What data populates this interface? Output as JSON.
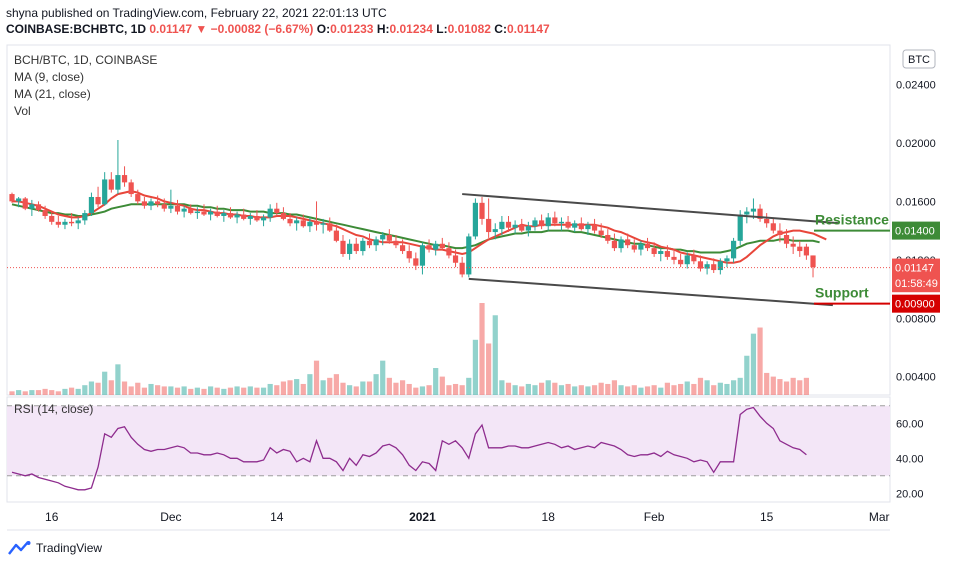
{
  "header": {
    "published": "shyna published on TradingView.com, February 22, 2021 22:01:13 UTC",
    "symbol": "COINBASE:BCHBTC, 1D",
    "last": "0.01147",
    "change": "−0.00082 (−6.67%)",
    "o_label": "O:",
    "o": "0.01233",
    "h_label": "H:",
    "h": "0.01234",
    "l_label": "L:",
    "l": "0.01082",
    "c_label": "C:",
    "c": "0.01147"
  },
  "legend": {
    "title": "BCH/BTC, 1D, COINBASE",
    "ma9": "MA (9, close)",
    "ma21": "MA (21, close)",
    "vol": "Vol",
    "rsi": "RSI (14, close)"
  },
  "currency_badge": "BTC",
  "footer": {
    "brand": "TradingView"
  },
  "colors": {
    "up": "#26a69a",
    "down": "#ef5350",
    "ma9": "#e8463a",
    "ma21": "#3d8b37",
    "channel": "#4a4a4a",
    "rsi": "#8e2c8e",
    "rsi_band": "#f3e6f7",
    "resistance": "#3d8b37",
    "support": "#d50000"
  },
  "chart_data": {
    "type": "candlestick",
    "title": "BCH/BTC, 1D, COINBASE",
    "ylim": [
      0.00275,
      0.0267
    ],
    "y_ticks": [
      "0.02400",
      "0.02000",
      "0.01600",
      "0.01400",
      "0.01200",
      "0.00800",
      "0.00400"
    ],
    "x_ticks": [
      "16",
      "Dec",
      "14",
      "2021",
      "18",
      "Feb",
      "15",
      "Mar"
    ],
    "x_tick_index": [
      6,
      24,
      40,
      62,
      81,
      97,
      114,
      131
    ],
    "price_tags": [
      {
        "label": "",
        "value": "0.01400",
        "y": 0.014,
        "color": "#3d8b37"
      },
      {
        "label": "",
        "value": "0.01147",
        "y": 0.01147,
        "color": "#ef5350"
      },
      {
        "label": "",
        "value": "01:58:49",
        "y": 0.0104,
        "color": "#ef5350"
      },
      {
        "label": "",
        "value": "0.00900",
        "y": 0.009,
        "color": "#d50000"
      }
    ],
    "annotations": {
      "resistance": {
        "text": "Resistance",
        "y": 0.014
      },
      "support": {
        "text": "Support",
        "y": 0.009
      }
    },
    "channel": [
      {
        "x1": 68,
        "y1": 0.0165,
        "x2": 125,
        "y2": 0.0145
      },
      {
        "x1": 69,
        "y1": 0.0107,
        "x2": 124,
        "y2": 0.0089
      }
    ],
    "ohlc": [
      [
        0.0165,
        0.0166,
        0.0159,
        0.016
      ],
      [
        0.016,
        0.0163,
        0.0156,
        0.0162
      ],
      [
        0.0162,
        0.0163,
        0.0154,
        0.0155
      ],
      [
        0.0155,
        0.0161,
        0.015,
        0.0158
      ],
      [
        0.0158,
        0.016,
        0.0153,
        0.0154
      ],
      [
        0.0154,
        0.0157,
        0.0148,
        0.015
      ],
      [
        0.015,
        0.0153,
        0.0144,
        0.0146
      ],
      [
        0.0146,
        0.015,
        0.0142,
        0.0144
      ],
      [
        0.0144,
        0.0148,
        0.0141,
        0.0146
      ],
      [
        0.0146,
        0.0152,
        0.0143,
        0.0145
      ],
      [
        0.0145,
        0.0149,
        0.0141,
        0.0147
      ],
      [
        0.0147,
        0.0154,
        0.0144,
        0.0152
      ],
      [
        0.0152,
        0.0166,
        0.015,
        0.0163
      ],
      [
        0.0163,
        0.017,
        0.0156,
        0.0158
      ],
      [
        0.0158,
        0.018,
        0.0157,
        0.0175
      ],
      [
        0.0175,
        0.018,
        0.0166,
        0.0168
      ],
      [
        0.0168,
        0.0202,
        0.0165,
        0.0178
      ],
      [
        0.0178,
        0.0184,
        0.017,
        0.0173
      ],
      [
        0.0173,
        0.0175,
        0.0163,
        0.0165
      ],
      [
        0.0165,
        0.0168,
        0.0158,
        0.016
      ],
      [
        0.016,
        0.0163,
        0.0155,
        0.0157
      ],
      [
        0.0157,
        0.0162,
        0.0154,
        0.016
      ],
      [
        0.016,
        0.0164,
        0.0156,
        0.0158
      ],
      [
        0.0158,
        0.0162,
        0.0153,
        0.0155
      ],
      [
        0.0155,
        0.0168,
        0.0152,
        0.0157
      ],
      [
        0.0157,
        0.0161,
        0.0151,
        0.0153
      ],
      [
        0.0153,
        0.0157,
        0.0149,
        0.0155
      ],
      [
        0.0155,
        0.0158,
        0.0151,
        0.0152
      ],
      [
        0.0152,
        0.0156,
        0.0148,
        0.0153
      ],
      [
        0.0153,
        0.0158,
        0.015,
        0.0151
      ],
      [
        0.0151,
        0.0155,
        0.0147,
        0.0153
      ],
      [
        0.0153,
        0.0157,
        0.0149,
        0.015
      ],
      [
        0.015,
        0.0154,
        0.0146,
        0.0152
      ],
      [
        0.0152,
        0.0156,
        0.0148,
        0.0149
      ],
      [
        0.0149,
        0.0153,
        0.0145,
        0.0151
      ],
      [
        0.0151,
        0.0155,
        0.0147,
        0.0148
      ],
      [
        0.0148,
        0.0152,
        0.0144,
        0.015
      ],
      [
        0.015,
        0.0154,
        0.0146,
        0.0147
      ],
      [
        0.0147,
        0.0151,
        0.0143,
        0.0149
      ],
      [
        0.0149,
        0.0158,
        0.0146,
        0.0155
      ],
      [
        0.0155,
        0.0159,
        0.015,
        0.0152
      ],
      [
        0.0152,
        0.0156,
        0.0147,
        0.0148
      ],
      [
        0.0148,
        0.0152,
        0.0143,
        0.0145
      ],
      [
        0.0145,
        0.0149,
        0.014,
        0.0147
      ],
      [
        0.0147,
        0.0151,
        0.0142,
        0.0143
      ],
      [
        0.0143,
        0.0149,
        0.0139,
        0.0146
      ],
      [
        0.0146,
        0.016,
        0.014,
        0.0144
      ],
      [
        0.0144,
        0.0148,
        0.0138,
        0.0145
      ],
      [
        0.0145,
        0.0149,
        0.0139,
        0.014
      ],
      [
        0.014,
        0.0144,
        0.0132,
        0.0133
      ],
      [
        0.0133,
        0.0137,
        0.0122,
        0.0124
      ],
      [
        0.0124,
        0.0134,
        0.012,
        0.0131
      ],
      [
        0.0131,
        0.0135,
        0.0124,
        0.0126
      ],
      [
        0.0126,
        0.0135,
        0.0123,
        0.0133
      ],
      [
        0.0133,
        0.0138,
        0.0128,
        0.013
      ],
      [
        0.013,
        0.0136,
        0.0126,
        0.0134
      ],
      [
        0.0134,
        0.0139,
        0.013,
        0.0137
      ],
      [
        0.0137,
        0.0141,
        0.0131,
        0.0133
      ],
      [
        0.0133,
        0.0137,
        0.0128,
        0.013
      ],
      [
        0.013,
        0.0134,
        0.0124,
        0.0126
      ],
      [
        0.0126,
        0.013,
        0.0118,
        0.0121
      ],
      [
        0.0121,
        0.0125,
        0.0113,
        0.0116
      ],
      [
        0.0116,
        0.0132,
        0.011,
        0.013
      ],
      [
        0.013,
        0.0134,
        0.0125,
        0.0127
      ],
      [
        0.0127,
        0.0133,
        0.0123,
        0.0131
      ],
      [
        0.0131,
        0.0135,
        0.0127,
        0.0128
      ],
      [
        0.0128,
        0.0132,
        0.0121,
        0.0123
      ],
      [
        0.0123,
        0.0127,
        0.0115,
        0.0118
      ],
      [
        0.0118,
        0.0122,
        0.0108,
        0.011
      ],
      [
        0.011,
        0.0138,
        0.0108,
        0.0136
      ],
      [
        0.0136,
        0.0162,
        0.0134,
        0.0159
      ],
      [
        0.0159,
        0.0163,
        0.0144,
        0.0148
      ],
      [
        0.0148,
        0.0162,
        0.0135,
        0.0139
      ],
      [
        0.0139,
        0.0145,
        0.0134,
        0.0141
      ],
      [
        0.0141,
        0.015,
        0.0137,
        0.0146
      ],
      [
        0.0146,
        0.015,
        0.0139,
        0.0142
      ],
      [
        0.0142,
        0.0147,
        0.0138,
        0.0144
      ],
      [
        0.0144,
        0.0148,
        0.0139,
        0.014
      ],
      [
        0.014,
        0.0146,
        0.0136,
        0.0143
      ],
      [
        0.0143,
        0.0149,
        0.014,
        0.0147
      ],
      [
        0.0147,
        0.0151,
        0.0141,
        0.0143
      ],
      [
        0.0143,
        0.0152,
        0.014,
        0.0149
      ],
      [
        0.0149,
        0.0153,
        0.0143,
        0.0145
      ],
      [
        0.0145,
        0.0149,
        0.014,
        0.0146
      ],
      [
        0.0146,
        0.015,
        0.0141,
        0.0142
      ],
      [
        0.0142,
        0.0147,
        0.0139,
        0.0145
      ],
      [
        0.0145,
        0.0149,
        0.014,
        0.0141
      ],
      [
        0.0141,
        0.0146,
        0.0137,
        0.0144
      ],
      [
        0.0144,
        0.0148,
        0.0138,
        0.014
      ],
      [
        0.014,
        0.0145,
        0.0135,
        0.0137
      ],
      [
        0.0137,
        0.0141,
        0.0131,
        0.0133
      ],
      [
        0.0133,
        0.0138,
        0.0126,
        0.0128
      ],
      [
        0.0128,
        0.0136,
        0.0125,
        0.0134
      ],
      [
        0.0134,
        0.0138,
        0.0128,
        0.013
      ],
      [
        0.013,
        0.0134,
        0.0125,
        0.0127
      ],
      [
        0.0127,
        0.0133,
        0.0123,
        0.0131
      ],
      [
        0.0131,
        0.0135,
        0.0126,
        0.0128
      ],
      [
        0.0128,
        0.0132,
        0.0122,
        0.0124
      ],
      [
        0.0124,
        0.0128,
        0.0119,
        0.0126
      ],
      [
        0.0126,
        0.013,
        0.012,
        0.0122
      ],
      [
        0.0122,
        0.0127,
        0.0117,
        0.012
      ],
      [
        0.012,
        0.0124,
        0.0115,
        0.0117
      ],
      [
        0.0117,
        0.0125,
        0.0114,
        0.0123
      ],
      [
        0.0123,
        0.0127,
        0.0117,
        0.0119
      ],
      [
        0.0119,
        0.0123,
        0.0112,
        0.0114
      ],
      [
        0.0114,
        0.0119,
        0.011,
        0.0117
      ],
      [
        0.0117,
        0.0121,
        0.0111,
        0.0113
      ],
      [
        0.0113,
        0.0121,
        0.011,
        0.0119
      ],
      [
        0.0119,
        0.0123,
        0.0115,
        0.0121
      ],
      [
        0.0121,
        0.0135,
        0.0118,
        0.0133
      ],
      [
        0.0133,
        0.0154,
        0.013,
        0.0151
      ],
      [
        0.0151,
        0.0156,
        0.0145,
        0.0153
      ],
      [
        0.0153,
        0.0162,
        0.0148,
        0.0155
      ],
      [
        0.0155,
        0.0158,
        0.0146,
        0.0148
      ],
      [
        0.0148,
        0.0152,
        0.0142,
        0.0145
      ],
      [
        0.0145,
        0.0149,
        0.0138,
        0.014
      ],
      [
        0.014,
        0.0145,
        0.0132,
        0.0137
      ],
      [
        0.0137,
        0.0141,
        0.0128,
        0.0131
      ],
      [
        0.0131,
        0.0136,
        0.0124,
        0.0129
      ],
      [
        0.0129,
        0.0133,
        0.0122,
        0.0126
      ],
      [
        0.0129,
        0.0131,
        0.012,
        0.0123
      ],
      [
        0.0123,
        0.0123,
        0.0108,
        0.0115
      ]
    ],
    "ma9": [
      0.016,
      0.016,
      0.0159,
      0.0158,
      0.0157,
      0.0155,
      0.0153,
      0.0151,
      0.015,
      0.0149,
      0.0149,
      0.015,
      0.0152,
      0.0155,
      0.0158,
      0.0162,
      0.0165,
      0.0166,
      0.0167,
      0.0166,
      0.0164,
      0.0163,
      0.0162,
      0.016,
      0.0159,
      0.0158,
      0.0157,
      0.0155,
      0.0154,
      0.0154,
      0.0153,
      0.0152,
      0.0152,
      0.0151,
      0.0151,
      0.015,
      0.015,
      0.0149,
      0.0149,
      0.0149,
      0.015,
      0.015,
      0.015,
      0.0149,
      0.0148,
      0.0147,
      0.0146,
      0.0145,
      0.0144,
      0.0143,
      0.0141,
      0.0139,
      0.0137,
      0.0136,
      0.0134,
      0.0133,
      0.0132,
      0.0132,
      0.0132,
      0.0132,
      0.0131,
      0.013,
      0.0129,
      0.0128,
      0.0127,
      0.0127,
      0.0126,
      0.0125,
      0.0124,
      0.0125,
      0.0128,
      0.0131,
      0.0134,
      0.0136,
      0.0138,
      0.014,
      0.0142,
      0.0144,
      0.0143,
      0.0143,
      0.0144,
      0.0144,
      0.0144,
      0.0144,
      0.0144,
      0.0144,
      0.0144,
      0.0144,
      0.0144,
      0.0143,
      0.0142,
      0.014,
      0.0139,
      0.0137,
      0.0135,
      0.0133,
      0.0132,
      0.0131,
      0.0129,
      0.0128,
      0.0127,
      0.0125,
      0.0124,
      0.0123,
      0.0122,
      0.0121,
      0.012,
      0.0119,
      0.0118,
      0.0118,
      0.0119,
      0.0122,
      0.0126,
      0.013,
      0.0133,
      0.0136,
      0.0138,
      0.0139,
      0.014,
      0.014,
      0.0139,
      0.0138,
      0.0136,
      0.0134
    ],
    "ma21": [
      0.0158,
      0.0157,
      0.0156,
      0.0155,
      0.0154,
      0.0153,
      0.0152,
      0.0152,
      0.0151,
      0.0151,
      0.015,
      0.015,
      0.0151,
      0.0152,
      0.0153,
      0.0155,
      0.0156,
      0.0157,
      0.0158,
      0.0158,
      0.0158,
      0.0158,
      0.0158,
      0.0158,
      0.0158,
      0.0158,
      0.0158,
      0.0157,
      0.0157,
      0.0156,
      0.0156,
      0.0155,
      0.0155,
      0.0154,
      0.0154,
      0.0154,
      0.0153,
      0.0153,
      0.0153,
      0.0152,
      0.0152,
      0.0152,
      0.0151,
      0.0151,
      0.015,
      0.0149,
      0.0148,
      0.0147,
      0.0146,
      0.0145,
      0.0144,
      0.0143,
      0.0142,
      0.0141,
      0.014,
      0.0139,
      0.0138,
      0.0137,
      0.0136,
      0.0135,
      0.0134,
      0.0133,
      0.0132,
      0.0131,
      0.013,
      0.013,
      0.0129,
      0.0128,
      0.0128,
      0.0129,
      0.013,
      0.0132,
      0.0134,
      0.0135,
      0.0136,
      0.0137,
      0.0138,
      0.0138,
      0.0139,
      0.0139,
      0.0139,
      0.014,
      0.014,
      0.014,
      0.014,
      0.0139,
      0.0139,
      0.0138,
      0.0137,
      0.0136,
      0.0135,
      0.0134,
      0.0133,
      0.0132,
      0.0131,
      0.0131,
      0.013,
      0.0129,
      0.0128,
      0.0128,
      0.0127,
      0.0127,
      0.0126,
      0.0126,
      0.0125,
      0.0125,
      0.0125,
      0.0125,
      0.0126,
      0.0127,
      0.0129,
      0.0131,
      0.0132,
      0.0133,
      0.0133,
      0.0133,
      0.0134,
      0.0134,
      0.0133,
      0.0133,
      0.0133,
      0.0133,
      0.0132
    ],
    "volume": [
      3,
      4,
      3,
      4,
      4,
      5,
      4,
      3,
      5,
      6,
      5,
      8,
      11,
      10,
      19,
      12,
      25,
      11,
      7,
      10,
      6,
      9,
      8,
      7,
      7,
      6,
      7,
      5,
      6,
      5,
      7,
      6,
      5,
      6,
      7,
      6,
      7,
      6,
      6,
      9,
      8,
      11,
      12,
      13,
      9,
      17,
      28,
      12,
      14,
      17,
      10,
      8,
      7,
      11,
      11,
      17,
      28,
      14,
      10,
      12,
      9,
      6,
      7,
      8,
      22,
      15,
      8,
      9,
      8,
      14,
      45,
      75,
      42,
      65,
      12,
      10,
      8,
      7,
      9,
      8,
      10,
      12,
      10,
      8,
      9,
      7,
      8,
      7,
      8,
      10,
      9,
      12,
      8,
      7,
      8,
      6,
      7,
      8,
      6,
      10,
      8,
      9,
      11,
      9,
      14,
      12,
      8,
      10,
      9,
      12,
      14,
      32,
      50,
      55,
      18,
      15,
      13,
      11,
      14,
      12,
      14
    ],
    "rsi": [
      32,
      31,
      30,
      31,
      29,
      28,
      27,
      26,
      24,
      23,
      22,
      22,
      23,
      35,
      54,
      52,
      57,
      58,
      52,
      48,
      45,
      44,
      45,
      45,
      46,
      47,
      46,
      43,
      43,
      42,
      42,
      43,
      42,
      40,
      40,
      38,
      38,
      38,
      39,
      46,
      43,
      45,
      44,
      38,
      40,
      38,
      50,
      40,
      40,
      38,
      33,
      40,
      36,
      42,
      41,
      43,
      47,
      48,
      46,
      42,
      36,
      33,
      38,
      37,
      33,
      50,
      48,
      50,
      46,
      40,
      54,
      59,
      46,
      46,
      46,
      47,
      47,
      46,
      46,
      47,
      48,
      49,
      48,
      46,
      47,
      45,
      46,
      47,
      46,
      49,
      48,
      47,
      45,
      42,
      41,
      42,
      42,
      43,
      41,
      44,
      42,
      41,
      40,
      38,
      39,
      38,
      32,
      38,
      38,
      38,
      65,
      68,
      69,
      64,
      60,
      57,
      50,
      48,
      46,
      45,
      42
    ],
    "rsi_ticks": [
      "60.00",
      "40.00",
      "20.00"
    ],
    "rsi_band": [
      30,
      70
    ],
    "rsi_ylim": [
      15,
      75
    ]
  }
}
